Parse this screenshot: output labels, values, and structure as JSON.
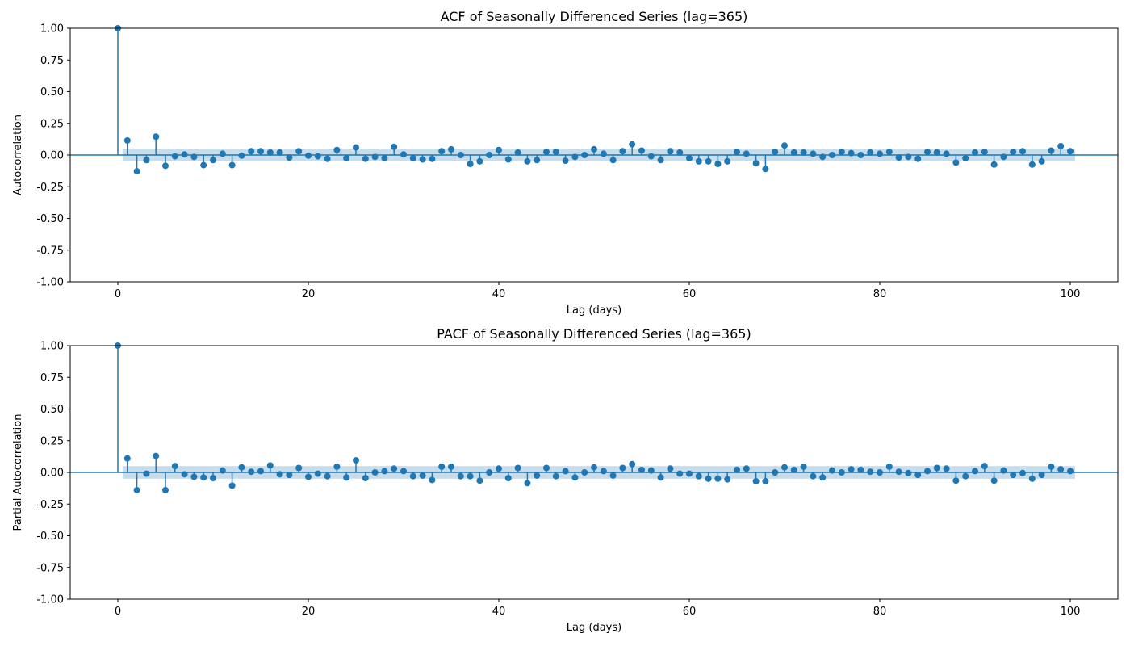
{
  "colors": {
    "stem": "#1f77b4",
    "band": "#1f77b4",
    "axes": "#000000",
    "background": "#ffffff"
  },
  "chart_data": [
    {
      "type": "stem",
      "title": "ACF of Seasonally Differenced Series (lag=365)",
      "xlabel": "Lag (days)",
      "ylabel": "Autocorrelation",
      "xlim": [
        -5,
        105
      ],
      "ylim": [
        -1.0,
        1.0
      ],
      "xticks": [
        0,
        20,
        40,
        60,
        80,
        100
      ],
      "yticks": [
        -1.0,
        -0.75,
        -0.5,
        -0.25,
        0.0,
        0.25,
        0.5,
        0.75,
        1.0
      ],
      "grid": false,
      "confidence_band": 0.05,
      "x": [
        0,
        1,
        2,
        3,
        4,
        5,
        6,
        7,
        8,
        9,
        10,
        11,
        12,
        13,
        14,
        15,
        16,
        17,
        18,
        19,
        20,
        21,
        22,
        23,
        24,
        25,
        26,
        27,
        28,
        29,
        30,
        31,
        32,
        33,
        34,
        35,
        36,
        37,
        38,
        39,
        40,
        41,
        42,
        43,
        44,
        45,
        46,
        47,
        48,
        49,
        50,
        51,
        52,
        53,
        54,
        55,
        56,
        57,
        58,
        59,
        60,
        61,
        62,
        63,
        64,
        65,
        66,
        67,
        68,
        69,
        70,
        71,
        72,
        73,
        74,
        75,
        76,
        77,
        78,
        79,
        80,
        81,
        82,
        83,
        84,
        85,
        86,
        87,
        88,
        89,
        90,
        91,
        92,
        93,
        94,
        95,
        96,
        97,
        98,
        99,
        100
      ],
      "values": [
        1.0,
        0.115,
        -0.128,
        -0.04,
        0.145,
        -0.085,
        -0.01,
        0.005,
        -0.015,
        -0.08,
        -0.04,
        0.01,
        -0.08,
        -0.005,
        0.03,
        0.03,
        0.02,
        0.02,
        -0.02,
        0.03,
        -0.005,
        -0.01,
        -0.03,
        0.04,
        -0.025,
        0.06,
        -0.03,
        -0.015,
        -0.025,
        0.065,
        0.005,
        -0.025,
        -0.035,
        -0.03,
        0.03,
        0.045,
        0.0,
        -0.07,
        -0.05,
        0.0,
        0.04,
        -0.035,
        0.02,
        -0.05,
        -0.04,
        0.025,
        0.025,
        -0.045,
        -0.015,
        0.0,
        0.045,
        0.01,
        -0.04,
        0.03,
        0.085,
        0.035,
        -0.01,
        -0.04,
        0.03,
        0.02,
        -0.025,
        -0.05,
        -0.05,
        -0.07,
        -0.05,
        0.025,
        0.01,
        -0.065,
        -0.11,
        0.025,
        0.075,
        0.02,
        0.02,
        0.01,
        -0.015,
        0.0,
        0.025,
        0.015,
        0.0,
        0.02,
        0.01,
        0.025,
        -0.02,
        -0.015,
        -0.03,
        0.025,
        0.02,
        0.01,
        -0.06,
        -0.025,
        0.02,
        0.025,
        -0.075,
        -0.015,
        0.025,
        0.03,
        -0.075,
        -0.05,
        0.035,
        0.07,
        0.03
      ]
    },
    {
      "type": "stem",
      "title": "PACF of Seasonally Differenced Series (lag=365)",
      "xlabel": "Lag (days)",
      "ylabel": "Partial Autocorrelation",
      "xlim": [
        -5,
        105
      ],
      "ylim": [
        -1.0,
        1.0
      ],
      "xticks": [
        0,
        20,
        40,
        60,
        80,
        100
      ],
      "yticks": [
        -1.0,
        -0.75,
        -0.5,
        -0.25,
        0.0,
        0.25,
        0.5,
        0.75,
        1.0
      ],
      "grid": false,
      "confidence_band": 0.05,
      "x": [
        0,
        1,
        2,
        3,
        4,
        5,
        6,
        7,
        8,
        9,
        10,
        11,
        12,
        13,
        14,
        15,
        16,
        17,
        18,
        19,
        20,
        21,
        22,
        23,
        24,
        25,
        26,
        27,
        28,
        29,
        30,
        31,
        32,
        33,
        34,
        35,
        36,
        37,
        38,
        39,
        40,
        41,
        42,
        43,
        44,
        45,
        46,
        47,
        48,
        49,
        50,
        51,
        52,
        53,
        54,
        55,
        56,
        57,
        58,
        59,
        60,
        61,
        62,
        63,
        64,
        65,
        66,
        67,
        68,
        69,
        70,
        71,
        72,
        73,
        74,
        75,
        76,
        77,
        78,
        79,
        80,
        81,
        82,
        83,
        84,
        85,
        86,
        87,
        88,
        89,
        90,
        91,
        92,
        93,
        94,
        95,
        96,
        97,
        98,
        99,
        100
      ],
      "values": [
        1.0,
        0.11,
        -0.14,
        -0.01,
        0.13,
        -0.14,
        0.05,
        -0.015,
        -0.035,
        -0.04,
        -0.045,
        0.015,
        -0.105,
        0.04,
        0.005,
        0.01,
        0.055,
        -0.015,
        -0.02,
        0.035,
        -0.035,
        -0.01,
        -0.03,
        0.045,
        -0.04,
        0.095,
        -0.045,
        0.0,
        0.01,
        0.03,
        0.01,
        -0.03,
        -0.025,
        -0.06,
        0.045,
        0.045,
        -0.03,
        -0.03,
        -0.065,
        0.0,
        0.03,
        -0.045,
        0.035,
        -0.085,
        -0.025,
        0.035,
        -0.03,
        0.01,
        -0.04,
        0.0,
        0.04,
        0.01,
        -0.025,
        0.035,
        0.065,
        0.02,
        0.015,
        -0.04,
        0.03,
        -0.01,
        -0.01,
        -0.03,
        -0.05,
        -0.05,
        -0.055,
        0.02,
        0.03,
        -0.07,
        -0.07,
        0.0,
        0.04,
        0.02,
        0.045,
        -0.03,
        -0.04,
        0.015,
        0.0,
        0.025,
        0.02,
        0.005,
        0.0,
        0.045,
        0.005,
        -0.005,
        -0.02,
        0.01,
        0.035,
        0.03,
        -0.065,
        -0.03,
        0.01,
        0.05,
        -0.065,
        0.015,
        -0.02,
        -0.005,
        -0.05,
        -0.02,
        0.045,
        0.025,
        0.01
      ]
    }
  ]
}
